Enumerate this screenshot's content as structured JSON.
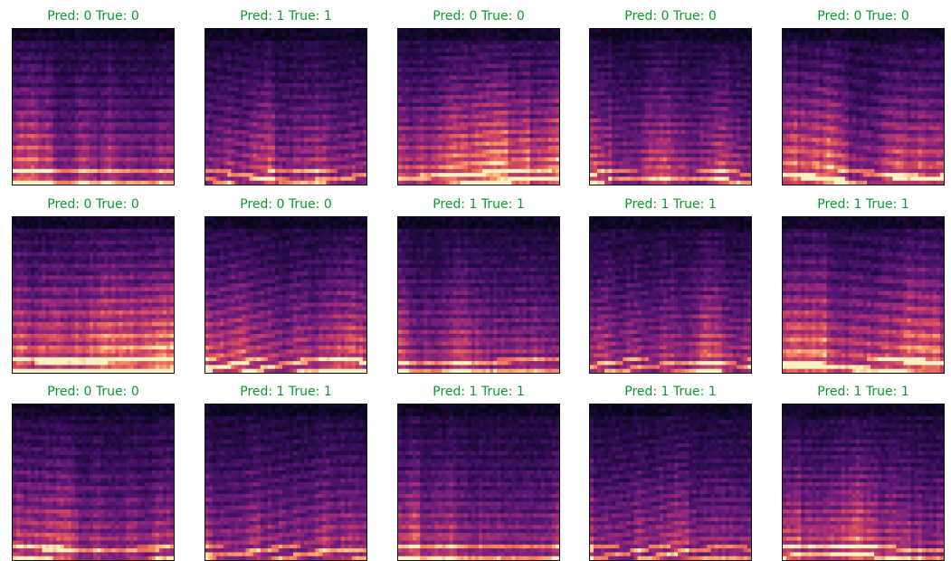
{
  "title_color": "#0a9a2a",
  "colormap": "magma",
  "panels": [
    {
      "title": "Pred: 0 True: 0",
      "pred": 0,
      "true": 0
    },
    {
      "title": "Pred: 1 True: 1",
      "pred": 1,
      "true": 1
    },
    {
      "title": "Pred: 0 True: 0",
      "pred": 0,
      "true": 0
    },
    {
      "title": "Pred: 0 True: 0",
      "pred": 0,
      "true": 0
    },
    {
      "title": "Pred: 0 True: 0",
      "pred": 0,
      "true": 0
    },
    {
      "title": "Pred: 0 True: 0",
      "pred": 0,
      "true": 0
    },
    {
      "title": "Pred: 0 True: 0",
      "pred": 0,
      "true": 0
    },
    {
      "title": "Pred: 1 True: 1",
      "pred": 1,
      "true": 1
    },
    {
      "title": "Pred: 1 True: 1",
      "pred": 1,
      "true": 1
    },
    {
      "title": "Pred: 1 True: 1",
      "pred": 1,
      "true": 1
    },
    {
      "title": "Pred: 0 True: 0",
      "pred": 0,
      "true": 0
    },
    {
      "title": "Pred: 1 True: 1",
      "pred": 1,
      "true": 1
    },
    {
      "title": "Pred: 1 True: 1",
      "pred": 1,
      "true": 1
    },
    {
      "title": "Pred: 1 True: 1",
      "pred": 1,
      "true": 1
    },
    {
      "title": "Pred: 1 True: 1",
      "pred": 1,
      "true": 1
    }
  ]
}
